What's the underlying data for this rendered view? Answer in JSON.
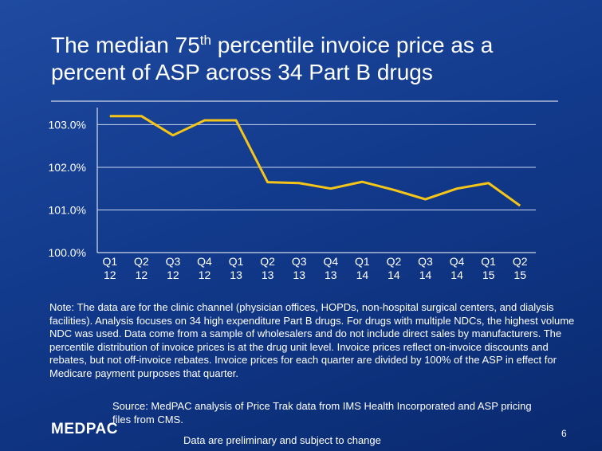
{
  "chart_data": {
    "type": "line",
    "title": [
      "The median 75",
      "th",
      " percentile invoice price as a",
      "percent of ASP across 34 Part B drugs"
    ],
    "categories": [
      [
        "Q1",
        "12"
      ],
      [
        "Q2",
        "12"
      ],
      [
        "Q3",
        "12"
      ],
      [
        "Q4",
        "12"
      ],
      [
        "Q1",
        "13"
      ],
      [
        "Q2",
        "13"
      ],
      [
        "Q3",
        "13"
      ],
      [
        "Q4",
        "13"
      ],
      [
        "Q1",
        "14"
      ],
      [
        "Q2",
        "14"
      ],
      [
        "Q3",
        "14"
      ],
      [
        "Q4",
        "14"
      ],
      [
        "Q1",
        "15"
      ],
      [
        "Q2",
        "15"
      ]
    ],
    "values": [
      103.2,
      103.2,
      102.75,
      103.1,
      103.1,
      101.65,
      101.63,
      101.5,
      101.66,
      101.47,
      101.25,
      101.5,
      101.63,
      101.1
    ],
    "color": "#f5c518",
    "ylim": [
      100,
      103.4
    ],
    "yticks": [
      {
        "value": 100,
        "label": "100.0%"
      },
      {
        "value": 101,
        "label": "101.0%"
      },
      {
        "value": 102,
        "label": "102.0%"
      },
      {
        "value": 103,
        "label": "103.0%"
      }
    ],
    "grid": true
  },
  "note": "Note: The data are for the clinic channel (physician offices, HOPDs, non-hospital surgical centers, and dialysis facilities). Analysis focuses on 34 high expenditure Part B drugs. For drugs with multiple NDCs, the highest volume NDC was used.  Data come from a sample of wholesalers and do not include direct sales by manufacturers.  The percentile distribution of invoice prices is at the drug unit level.  Invoice prices reflect on-invoice discounts and rebates, but not off-invoice rebates. Invoice prices for each quarter are divided by 100% of the ASP in effect for Medicare payment purposes that quarter.",
  "source": "Source: MedPAC analysis of Price Trak data from IMS Health Incorporated and ASP pricing files from CMS.",
  "logo": "MEDPAC",
  "disclaimer": "Data are preliminary and subject to change",
  "page_number": "6"
}
